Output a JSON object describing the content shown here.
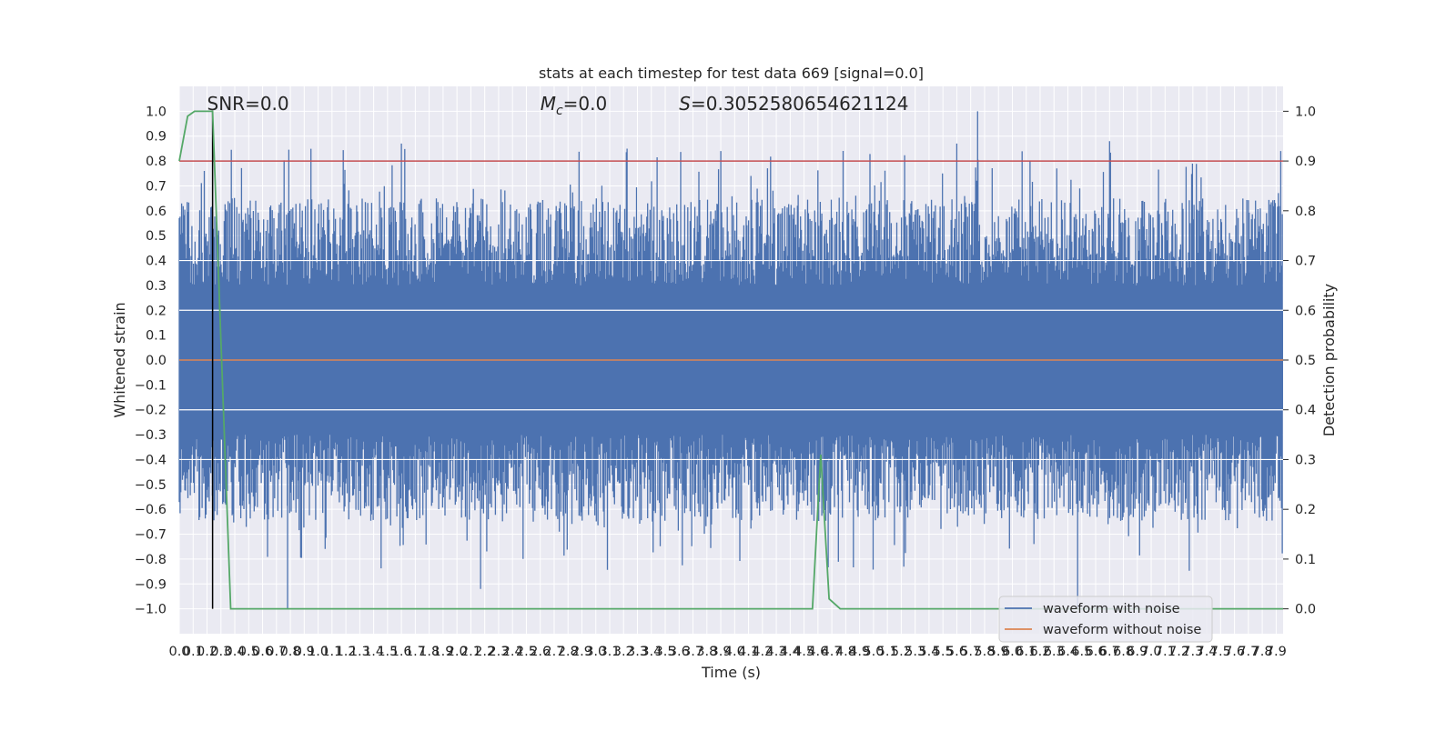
{
  "chart_data": {
    "type": "line",
    "title": "stats at each timestep for test data 669 [signal=0.0]",
    "xlabel": "Time (s)",
    "ylabel": "Whitened strain",
    "y2label": "Detection probability",
    "xlim": [
      0.0,
      7.95
    ],
    "ylim": [
      -1.1,
      1.1
    ],
    "y2lim": [
      -0.05,
      1.05
    ],
    "x_ticks": [
      "0.0",
      "0.1",
      "0.2",
      "0.3",
      "0.4",
      "0.5",
      "0.6",
      "0.7",
      "0.8",
      "0.9",
      "1.0",
      "1.1",
      "1.2",
      "1.3",
      "1.4",
      "1.5",
      "1.6",
      "1.7",
      "1.8",
      "1.9",
      "2.0",
      "2.1",
      "2.2",
      "2.3",
      "2.4",
      "2.5",
      "2.6",
      "2.7",
      "2.8",
      "2.9",
      "3.0",
      "3.1",
      "3.2",
      "3.3",
      "3.4",
      "3.5",
      "3.6",
      "3.7",
      "3.8",
      "3.9",
      "4.0",
      "4.1",
      "4.2",
      "4.3",
      "4.4",
      "4.5",
      "4.6",
      "4.7",
      "4.8",
      "4.9",
      "5.0",
      "5.1",
      "5.2",
      "5.3",
      "5.4",
      "5.5",
      "5.6",
      "5.7",
      "5.8",
      "5.9",
      "6.0",
      "6.1",
      "6.2",
      "6.3",
      "6.4",
      "6.5",
      "6.6",
      "6.7",
      "6.8",
      "6.9",
      "7.0",
      "7.1",
      "7.2",
      "7.3",
      "7.4",
      "7.5",
      "7.6",
      "7.7",
      "7.8",
      "7.9"
    ],
    "y_ticks": [
      "1.0",
      "0.9",
      "0.8",
      "0.7",
      "0.6",
      "0.5",
      "0.4",
      "0.3",
      "0.2",
      "0.1",
      "0.0",
      "−0.1",
      "−0.2",
      "−0.3",
      "−0.4",
      "−0.5",
      "−0.6",
      "−0.7",
      "−0.8",
      "−0.9",
      "−1.0"
    ],
    "y2_ticks": [
      "1.0",
      "0.9",
      "0.8",
      "0.7",
      "0.6",
      "0.5",
      "0.4",
      "0.3",
      "0.2",
      "0.1",
      "0.0"
    ],
    "grid": true,
    "legend": "lower-right",
    "annotations": {
      "snr": "SNR=0.0",
      "mc_symbol": "M",
      "mc_sub": "c",
      "mc_value": "=0.0",
      "s_symbol": "S",
      "s_value": "=0.3052580654621124"
    },
    "series": [
      {
        "name": "waveform with noise",
        "color": "#4c72b0",
        "description_range": [
          -1.0,
          1.0
        ],
        "peaks": [
          {
            "x": 0.18,
            "y": 0.76
          },
          {
            "x": 1.6,
            "y": 0.87
          },
          {
            "x": 3.9,
            "y": 0.84
          },
          {
            "x": 5.6,
            "y": 0.87
          },
          {
            "x": 5.75,
            "y": 1.0
          },
          {
            "x": 6.7,
            "y": 0.88
          },
          {
            "x": 0.78,
            "y": -1.0
          },
          {
            "x": 2.17,
            "y": -0.92
          },
          {
            "x": 6.47,
            "y": -1.0
          }
        ]
      },
      {
        "name": "waveform without noise",
        "color": "#dd8452",
        "y": 0.0
      },
      {
        "name": "detection probability",
        "color": "#55a868",
        "axis": "right",
        "x": [
          0.0,
          0.06,
          0.11,
          0.24,
          0.37,
          4.5,
          4.56,
          4.62,
          4.68,
          4.76,
          7.95
        ],
        "y": [
          0.9,
          0.99,
          1.0,
          1.0,
          0.0,
          0.0,
          0.0,
          0.31,
          0.02,
          0.0,
          0.0
        ]
      },
      {
        "name": "threshold",
        "color": "#c44e52",
        "axis": "right",
        "y": 0.9
      },
      {
        "name": "marker",
        "color": "#000000",
        "x": 0.24,
        "y_range": [
          -1.0,
          1.0
        ]
      }
    ],
    "colors": {
      "axes_bg": "#eaeaf2",
      "grid": "#ffffff",
      "noise": "#4c72b0",
      "clean": "#dd8452",
      "prob": "#55a868",
      "threshold": "#c44e52"
    }
  }
}
